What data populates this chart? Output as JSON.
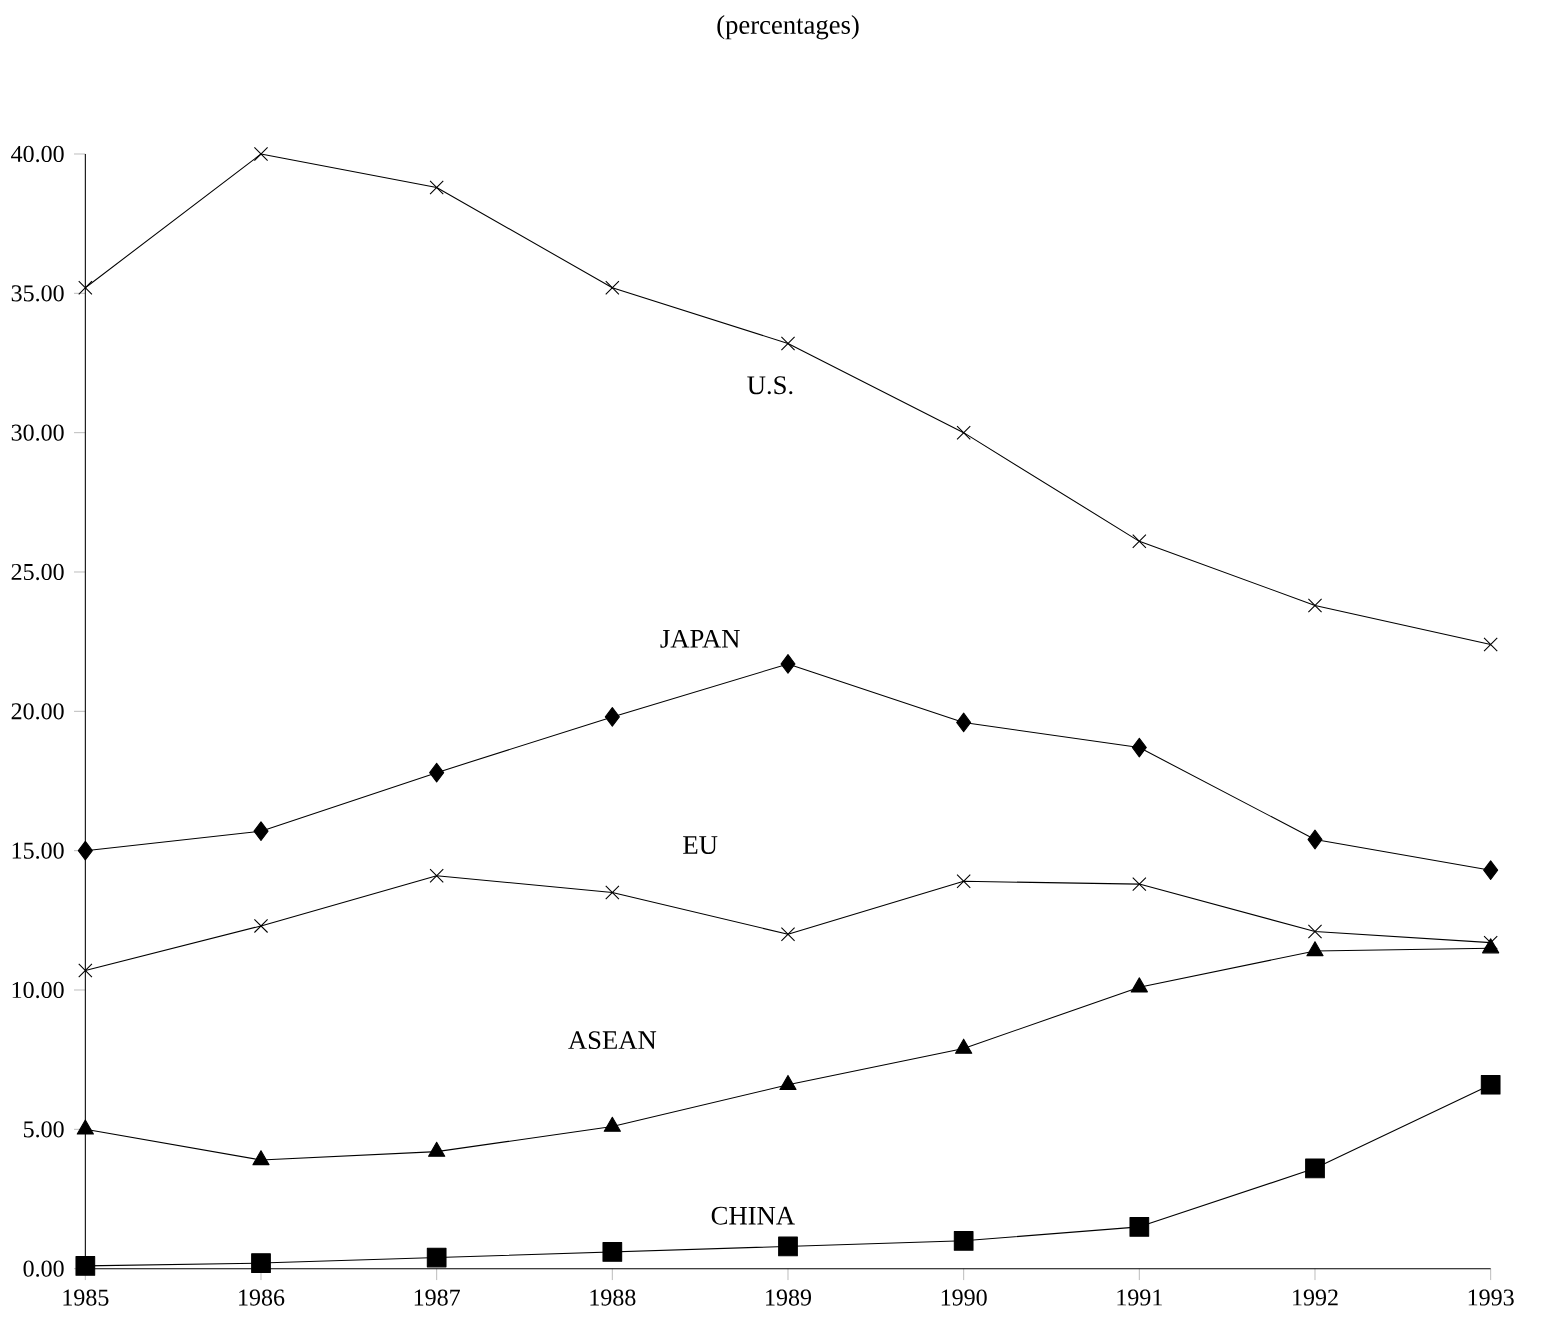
{
  "chart_data": {
    "type": "line",
    "title": "(percentages)",
    "x": [
      1985,
      1986,
      1987,
      1988,
      1989,
      1990,
      1991,
      1992,
      1993
    ],
    "xlim": [
      1985,
      1993
    ],
    "xticks": [
      1985,
      1986,
      1987,
      1988,
      1989,
      1990,
      1991,
      1992,
      1993
    ],
    "ylim": [
      0,
      40
    ],
    "yticks": [
      {
        "value": 0,
        "label": "0.00"
      },
      {
        "value": 5,
        "label": "5.00"
      },
      {
        "value": 10,
        "label": "10.00"
      },
      {
        "value": 15,
        "label": "15.00"
      },
      {
        "value": 20,
        "label": "20.00"
      },
      {
        "value": 25,
        "label": "25.00"
      },
      {
        "value": 30,
        "label": "30.00"
      },
      {
        "value": 35,
        "label": "35.00"
      },
      {
        "value": 40,
        "label": "40.00"
      }
    ],
    "grid": false,
    "legend": false,
    "line_style": "solid",
    "series": [
      {
        "name": "U.S.",
        "color": "#000000",
        "marker": "cross",
        "values": [
          35.2,
          40.0,
          38.8,
          35.2,
          33.2,
          30.0,
          26.1,
          23.8,
          22.4
        ]
      },
      {
        "name": "JAPAN",
        "color": "#000000",
        "marker": "diamond",
        "values": [
          15.0,
          15.7,
          17.8,
          19.8,
          21.7,
          19.6,
          18.7,
          15.4,
          14.3
        ]
      },
      {
        "name": "EU",
        "color": "#000000",
        "marker": "cross",
        "values": [
          10.7,
          12.3,
          14.1,
          13.5,
          12.0,
          13.9,
          13.8,
          12.1,
          11.7
        ]
      },
      {
        "name": "ASEAN",
        "color": "#000000",
        "marker": "triangle",
        "values": [
          5.0,
          3.9,
          4.2,
          5.1,
          6.6,
          7.9,
          10.1,
          11.4,
          11.5
        ]
      },
      {
        "name": "CHINA",
        "color": "#000000",
        "marker": "square",
        "values": [
          0.1,
          0.2,
          0.4,
          0.6,
          0.8,
          1.0,
          1.5,
          3.6,
          6.6
        ]
      }
    ]
  }
}
